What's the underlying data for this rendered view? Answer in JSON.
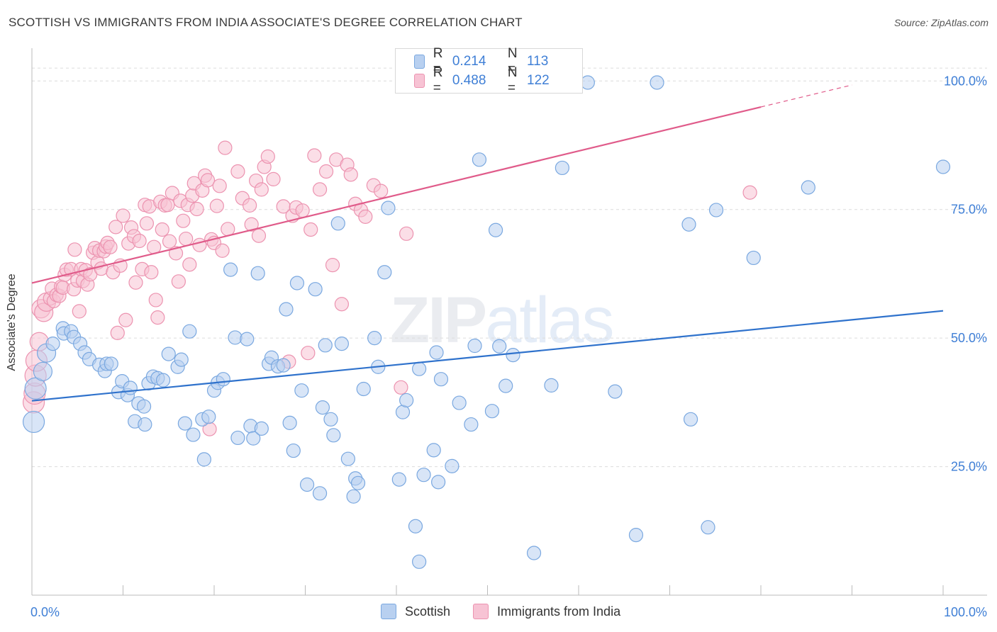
{
  "title": "SCOTTISH VS IMMIGRANTS FROM INDIA ASSOCIATE'S DEGREE CORRELATION CHART",
  "source": "Source: ZipAtlas.com",
  "watermark": {
    "zip": "ZIP",
    "atlas": "atlas"
  },
  "colors": {
    "scottish_fill": "#b8d0f0",
    "scottish_edge": "#7aa8e0",
    "scottish_line": "#2f72cc",
    "india_fill": "#f7c3d4",
    "india_edge": "#ec93b0",
    "india_line": "#e05b8a",
    "accent_text": "#3f7fd6",
    "grid": "#dcdcdc"
  },
  "legend_top": [
    {
      "series": "Scottish",
      "r_label": "R =",
      "r_value": "0.214",
      "n_label": "N =",
      "n_value": "113"
    },
    {
      "series": "Immigrants from India",
      "r_label": "R =",
      "r_value": "0.488",
      "n_label": "N =",
      "n_value": "122"
    }
  ],
  "legend_bottom": [
    "Scottish",
    "Immigrants from India"
  ],
  "chart_data": {
    "type": "scatter",
    "title": "SCOTTISH VS IMMIGRANTS FROM INDIA ASSOCIATE'S DEGREE CORRELATION CHART",
    "xlabel": "",
    "ylabel": "Associate's Degree",
    "xlim": [
      0,
      100
    ],
    "ylim": [
      0,
      105
    ],
    "x_tick_labels": [
      "0.0%",
      "100.0%"
    ],
    "y_tick_labels": [
      {
        "v": 25,
        "label": "25.0%"
      },
      {
        "v": 50,
        "label": "50.0%"
      },
      {
        "v": 75,
        "label": "75.0%"
      },
      {
        "v": 100,
        "label": "100.0%"
      }
    ],
    "grid": true,
    "legend_position": "bottom",
    "series": [
      {
        "name": "Scottish",
        "trend": {
          "x0": 0,
          "y0": 37.8,
          "x1": 100,
          "y1": 55.3
        },
        "points": [
          [
            0.2,
            33.7
          ],
          [
            0.4,
            40.2
          ],
          [
            1.2,
            43.5
          ],
          [
            1.6,
            47.1
          ],
          [
            2.3,
            48.9
          ],
          [
            3.4,
            51.9
          ],
          [
            3.5,
            50.9
          ],
          [
            4.3,
            51.3
          ],
          [
            4.6,
            50.2
          ],
          [
            5.3,
            48.9
          ],
          [
            5.8,
            47.2
          ],
          [
            6.3,
            45.9
          ],
          [
            7.4,
            44.8
          ],
          [
            8.0,
            43.6
          ],
          [
            8.2,
            45.0
          ],
          [
            8.7,
            45.0
          ],
          [
            9.5,
            39.5
          ],
          [
            9.9,
            41.6
          ],
          [
            10.5,
            38.9
          ],
          [
            10.8,
            40.3
          ],
          [
            11.3,
            33.8
          ],
          [
            11.7,
            37.3
          ],
          [
            12.3,
            36.7
          ],
          [
            12.4,
            33.2
          ],
          [
            12.8,
            41.2
          ],
          [
            13.3,
            42.5
          ],
          [
            13.8,
            42.2
          ],
          [
            14.4,
            41.8
          ],
          [
            15.0,
            46.9
          ],
          [
            16.0,
            44.4
          ],
          [
            16.4,
            45.8
          ],
          [
            16.8,
            33.4
          ],
          [
            17.3,
            51.3
          ],
          [
            17.7,
            31.2
          ],
          [
            18.7,
            34.2
          ],
          [
            18.9,
            26.4
          ],
          [
            19.4,
            34.7
          ],
          [
            20.0,
            39.8
          ],
          [
            20.4,
            41.3
          ],
          [
            21.0,
            42.0
          ],
          [
            21.8,
            63.3
          ],
          [
            22.3,
            50.1
          ],
          [
            22.6,
            30.6
          ],
          [
            23.6,
            49.8
          ],
          [
            24.0,
            32.9
          ],
          [
            24.3,
            30.5
          ],
          [
            24.8,
            62.6
          ],
          [
            25.2,
            32.4
          ],
          [
            26.0,
            45.0
          ],
          [
            26.3,
            46.2
          ],
          [
            27.0,
            44.5
          ],
          [
            27.6,
            44.7
          ],
          [
            27.9,
            55.6
          ],
          [
            28.3,
            33.5
          ],
          [
            28.7,
            28.1
          ],
          [
            29.1,
            60.7
          ],
          [
            29.6,
            39.8
          ],
          [
            30.2,
            21.5
          ],
          [
            31.1,
            59.5
          ],
          [
            31.6,
            19.8
          ],
          [
            31.9,
            36.5
          ],
          [
            32.2,
            48.6
          ],
          [
            32.8,
            34.2
          ],
          [
            33.1,
            31.1
          ],
          [
            33.6,
            72.3
          ],
          [
            34.0,
            48.9
          ],
          [
            34.7,
            26.5
          ],
          [
            35.3,
            19.2
          ],
          [
            35.5,
            22.7
          ],
          [
            35.8,
            21.8
          ],
          [
            36.4,
            40.1
          ],
          [
            37.6,
            50.0
          ],
          [
            38.0,
            44.4
          ],
          [
            38.7,
            62.8
          ],
          [
            39.1,
            75.3
          ],
          [
            40.3,
            22.5
          ],
          [
            40.7,
            35.6
          ],
          [
            41.1,
            37.9
          ],
          [
            42.1,
            13.4
          ],
          [
            42.5,
            44.0
          ],
          [
            43.0,
            23.4
          ],
          [
            44.1,
            28.2
          ],
          [
            44.4,
            47.2
          ],
          [
            44.6,
            22.0
          ],
          [
            44.9,
            42.0
          ],
          [
            46.1,
            25.1
          ],
          [
            46.9,
            37.4
          ],
          [
            48.2,
            33.2
          ],
          [
            48.6,
            48.5
          ],
          [
            49.1,
            84.7
          ],
          [
            50.5,
            35.8
          ],
          [
            50.9,
            71.0
          ],
          [
            51.3,
            48.4
          ],
          [
            52.0,
            40.7
          ],
          [
            52.8,
            46.7
          ],
          [
            55.1,
            8.2
          ],
          [
            57.0,
            40.8
          ],
          [
            58.2,
            83.1
          ],
          [
            61.0,
            99.7
          ],
          [
            64.0,
            39.6
          ],
          [
            66.3,
            11.7
          ],
          [
            68.6,
            99.7
          ],
          [
            72.1,
            72.1
          ],
          [
            72.3,
            34.2
          ],
          [
            74.2,
            13.2
          ],
          [
            75.1,
            74.9
          ],
          [
            79.2,
            65.6
          ],
          [
            85.2,
            79.3
          ],
          [
            100,
            83.3
          ],
          [
            42.5,
            6.5
          ]
        ]
      },
      {
        "name": "Immigrants from India",
        "trend": {
          "x0": 0,
          "y0": 60.7,
          "x1": 100,
          "y1": 103.5,
          "solid_until_x": 80
        },
        "points": [
          [
            0.2,
            37.5
          ],
          [
            0.3,
            39.2
          ],
          [
            0.4,
            42.7
          ],
          [
            0.5,
            45.6
          ],
          [
            0.8,
            49.3
          ],
          [
            1.0,
            55.7
          ],
          [
            1.3,
            55.0
          ],
          [
            1.6,
            57.0
          ],
          [
            2.0,
            57.7
          ],
          [
            2.2,
            59.6
          ],
          [
            2.4,
            57.2
          ],
          [
            2.7,
            58.4
          ],
          [
            3.0,
            58.2
          ],
          [
            3.2,
            60.0
          ],
          [
            3.4,
            59.8
          ],
          [
            3.6,
            62.3
          ],
          [
            3.8,
            63.3
          ],
          [
            4.3,
            63.4
          ],
          [
            4.6,
            59.5
          ],
          [
            4.7,
            67.2
          ],
          [
            5.0,
            61.2
          ],
          [
            5.2,
            55.2
          ],
          [
            5.4,
            63.4
          ],
          [
            5.6,
            61.1
          ],
          [
            5.9,
            63.2
          ],
          [
            6.1,
            60.4
          ],
          [
            6.4,
            62.4
          ],
          [
            6.7,
            66.6
          ],
          [
            6.9,
            67.5
          ],
          [
            7.2,
            64.7
          ],
          [
            7.4,
            67.0
          ],
          [
            7.6,
            63.5
          ],
          [
            7.9,
            66.9
          ],
          [
            8.1,
            67.8
          ],
          [
            8.3,
            68.5
          ],
          [
            8.6,
            67.7
          ],
          [
            8.9,
            62.8
          ],
          [
            9.2,
            71.6
          ],
          [
            9.4,
            51.0
          ],
          [
            9.7,
            64.1
          ],
          [
            10.0,
            73.8
          ],
          [
            10.3,
            53.5
          ],
          [
            10.6,
            68.4
          ],
          [
            10.9,
            71.5
          ],
          [
            11.2,
            69.8
          ],
          [
            11.4,
            60.8
          ],
          [
            11.8,
            68.9
          ],
          [
            12.1,
            63.4
          ],
          [
            12.4,
            75.9
          ],
          [
            12.6,
            72.3
          ],
          [
            12.9,
            75.6
          ],
          [
            13.1,
            62.8
          ],
          [
            13.4,
            67.7
          ],
          [
            13.6,
            57.4
          ],
          [
            13.8,
            54.0
          ],
          [
            14.1,
            76.5
          ],
          [
            14.3,
            71.1
          ],
          [
            14.6,
            75.8
          ],
          [
            14.9,
            75.9
          ],
          [
            15.1,
            68.8
          ],
          [
            15.4,
            78.2
          ],
          [
            15.8,
            66.5
          ],
          [
            16.1,
            61.0
          ],
          [
            16.3,
            76.7
          ],
          [
            16.6,
            72.8
          ],
          [
            16.9,
            69.3
          ],
          [
            17.1,
            75.9
          ],
          [
            17.3,
            64.3
          ],
          [
            17.6,
            77.7
          ],
          [
            17.8,
            80.1
          ],
          [
            18.1,
            75.1
          ],
          [
            18.4,
            68.1
          ],
          [
            18.7,
            78.7
          ],
          [
            19.0,
            81.6
          ],
          [
            19.3,
            80.7
          ],
          [
            19.5,
            32.3
          ],
          [
            19.7,
            69.2
          ],
          [
            20.0,
            68.5
          ],
          [
            20.3,
            75.7
          ],
          [
            20.6,
            79.6
          ],
          [
            20.9,
            67.0
          ],
          [
            21.2,
            87.0
          ],
          [
            21.5,
            71.2
          ],
          [
            22.6,
            82.4
          ],
          [
            23.1,
            77.2
          ],
          [
            23.9,
            75.8
          ],
          [
            24.1,
            72.1
          ],
          [
            24.6,
            80.6
          ],
          [
            24.9,
            69.9
          ],
          [
            25.2,
            78.9
          ],
          [
            25.5,
            83.3
          ],
          [
            25.9,
            85.3
          ],
          [
            26.5,
            80.9
          ],
          [
            27.6,
            75.6
          ],
          [
            28.2,
            45.4
          ],
          [
            28.6,
            73.8
          ],
          [
            29.0,
            75.4
          ],
          [
            29.7,
            74.8
          ],
          [
            30.3,
            47.1
          ],
          [
            30.6,
            71.1
          ],
          [
            31.0,
            85.5
          ],
          [
            31.6,
            78.9
          ],
          [
            32.3,
            82.4
          ],
          [
            33.0,
            64.2
          ],
          [
            33.4,
            84.7
          ],
          [
            34.0,
            56.6
          ],
          [
            34.6,
            83.7
          ],
          [
            35.0,
            81.8
          ],
          [
            35.5,
            76.1
          ],
          [
            36.1,
            74.9
          ],
          [
            36.6,
            73.6
          ],
          [
            37.5,
            79.7
          ],
          [
            38.3,
            78.6
          ],
          [
            40.5,
            40.4
          ],
          [
            41.1,
            70.3
          ],
          [
            78.8,
            78.3
          ]
        ]
      }
    ]
  }
}
